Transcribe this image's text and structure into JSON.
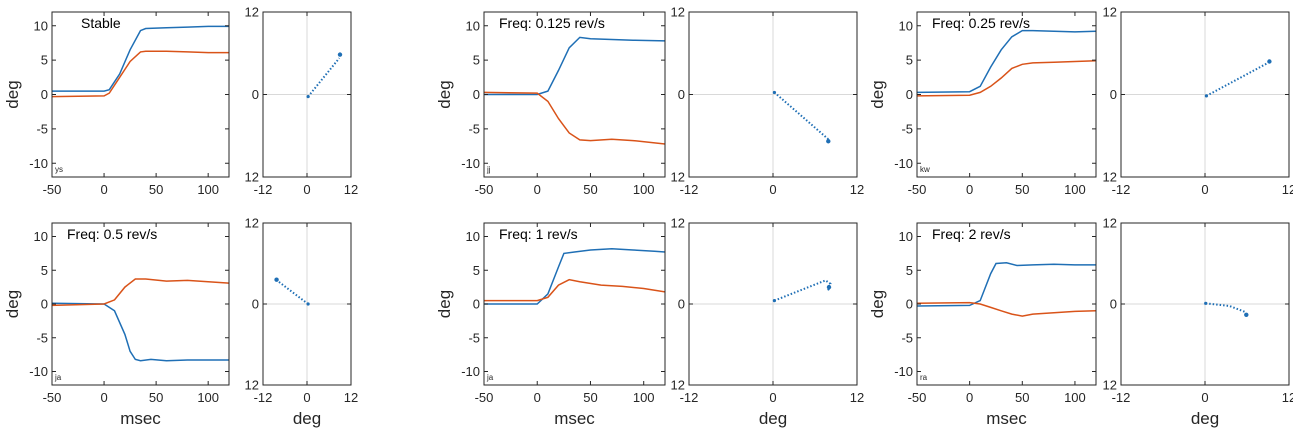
{
  "figure": {
    "colors": {
      "series_blue": "#1f6fb5",
      "series_orange": "#d95319",
      "axis": "#262626",
      "grid": "#d9d9d9"
    },
    "timeseries_xlabel": "msec",
    "timeseries_ylabel": "deg",
    "trajectory_xlabel": "deg"
  },
  "chart_data": [
    {
      "type": "line",
      "title": "Stable",
      "subject": "ys",
      "xlim": [
        -50,
        120
      ],
      "ylim": [
        -12,
        12
      ],
      "xticks": [
        -50,
        0,
        50,
        100
      ],
      "yticks": [
        -10,
        -5,
        0,
        5,
        10
      ],
      "xlabel": "",
      "ylabel": "deg",
      "series": [
        {
          "color": "#1f6fb5",
          "x": [
            -50,
            0,
            5,
            15,
            25,
            35,
            40,
            60,
            80,
            100,
            120
          ],
          "y": [
            0.5,
            0.5,
            0.7,
            3,
            6.5,
            9.3,
            9.6,
            9.7,
            9.8,
            9.9,
            9.9
          ]
        },
        {
          "color": "#d95319",
          "x": [
            -50,
            0,
            5,
            15,
            25,
            35,
            40,
            60,
            80,
            100,
            120
          ],
          "y": [
            -0.3,
            -0.2,
            0.2,
            2.5,
            4.8,
            6.2,
            6.3,
            6.3,
            6.2,
            6.1,
            6.1
          ]
        }
      ]
    },
    {
      "type": "scatter",
      "xlim": [
        -12,
        12
      ],
      "ylim": [
        -12,
        12
      ],
      "xticks": [
        -12,
        0,
        12
      ],
      "yticks": [
        -12,
        0,
        12
      ],
      "yticklabels": [
        "12",
        "0",
        "12"
      ],
      "xlabel": "",
      "grid": true,
      "path": [
        [
          0.3,
          -0.3
        ],
        [
          8.8,
          5.3
        ]
      ],
      "end": [
        9.0,
        5.8
      ]
    },
    {
      "type": "line",
      "title": "Freq: 0.125 rev/s",
      "subject": "jj",
      "xlim": [
        -50,
        120
      ],
      "ylim": [
        -12,
        12
      ],
      "xticks": [
        -50,
        0,
        50,
        100
      ],
      "yticks": [
        -10,
        -5,
        0,
        5,
        10
      ],
      "xlabel": "",
      "ylabel": "deg",
      "series": [
        {
          "color": "#1f6fb5",
          "x": [
            -50,
            0,
            10,
            20,
            30,
            40,
            50,
            70,
            90,
            120
          ],
          "y": [
            0,
            0,
            0.5,
            3.5,
            6.8,
            8.3,
            8.1,
            8.0,
            7.9,
            7.8
          ]
        },
        {
          "color": "#d95319",
          "x": [
            -50,
            0,
            10,
            20,
            30,
            40,
            50,
            70,
            90,
            120
          ],
          "y": [
            0.3,
            0.2,
            -1,
            -3.5,
            -5.6,
            -6.6,
            -6.7,
            -6.5,
            -6.7,
            -7.2
          ]
        }
      ]
    },
    {
      "type": "scatter",
      "xlim": [
        -12,
        12
      ],
      "ylim": [
        -12,
        12
      ],
      "xticks": [
        -12,
        0,
        12
      ],
      "yticks": [
        -12,
        0,
        12
      ],
      "yticklabels": [
        "12",
        "0",
        "12"
      ],
      "xlabel": "",
      "grid": true,
      "path": [
        [
          0.2,
          0.3
        ],
        [
          7.9,
          -6.5
        ]
      ],
      "end": [
        7.9,
        -6.8
      ]
    },
    {
      "type": "line",
      "title": "Freq: 0.25 rev/s",
      "subject": "kw",
      "xlim": [
        -50,
        120
      ],
      "ylim": [
        -12,
        12
      ],
      "xticks": [
        -50,
        0,
        50,
        100
      ],
      "yticks": [
        -10,
        -5,
        0,
        5,
        10
      ],
      "xlabel": "",
      "ylabel": "deg",
      "series": [
        {
          "color": "#1f6fb5",
          "x": [
            -50,
            0,
            10,
            20,
            30,
            40,
            50,
            60,
            80,
            100,
            120
          ],
          "y": [
            0.3,
            0.4,
            1.2,
            4,
            6.5,
            8.4,
            9.3,
            9.3,
            9.2,
            9.1,
            9.2
          ]
        },
        {
          "color": "#d95319",
          "x": [
            -50,
            0,
            10,
            20,
            30,
            40,
            50,
            60,
            80,
            100,
            120
          ],
          "y": [
            -0.2,
            -0.1,
            0.3,
            1.2,
            2.4,
            3.8,
            4.4,
            4.6,
            4.7,
            4.8,
            4.9
          ]
        }
      ]
    },
    {
      "type": "scatter",
      "xlim": [
        -12,
        12
      ],
      "ylim": [
        -12,
        12
      ],
      "xticks": [
        -12,
        0,
        12
      ],
      "yticks": [
        -12,
        0,
        12
      ],
      "yticklabels": [
        "12",
        "0",
        "12"
      ],
      "xlabel": "",
      "grid": true,
      "path": [
        [
          0.2,
          -0.2
        ],
        [
          9.0,
          4.6
        ]
      ],
      "end": [
        9.2,
        4.8
      ]
    },
    {
      "type": "line",
      "title": "Freq: 0.5 rev/s",
      "subject": "ja",
      "xlim": [
        -50,
        120
      ],
      "ylim": [
        -12,
        12
      ],
      "xticks": [
        -50,
        0,
        50,
        100
      ],
      "yticks": [
        -10,
        -5,
        0,
        5,
        10
      ],
      "xlabel": "msec",
      "ylabel": "deg",
      "series": [
        {
          "color": "#1f6fb5",
          "x": [
            -50,
            0,
            10,
            20,
            25,
            30,
            35,
            45,
            60,
            80,
            100,
            120
          ],
          "y": [
            0.1,
            0,
            -1,
            -4.5,
            -7,
            -8.2,
            -8.4,
            -8.2,
            -8.4,
            -8.3,
            -8.3,
            -8.3
          ]
        },
        {
          "color": "#d95319",
          "x": [
            -50,
            0,
            10,
            20,
            30,
            40,
            60,
            80,
            100,
            120
          ],
          "y": [
            -0.2,
            0,
            0.6,
            2.5,
            3.7,
            3.7,
            3.4,
            3.5,
            3.3,
            3.1
          ]
        }
      ]
    },
    {
      "type": "scatter",
      "xlim": [
        -12,
        12
      ],
      "ylim": [
        -12,
        12
      ],
      "xticks": [
        -12,
        0,
        12
      ],
      "yticks": [
        -12,
        0,
        12
      ],
      "yticklabels": [
        "12",
        "0",
        "12"
      ],
      "xlabel": "deg",
      "grid": true,
      "path": [
        [
          0.3,
          0
        ],
        [
          -8.2,
          3.5
        ]
      ],
      "end": [
        -8.3,
        3.6
      ]
    },
    {
      "type": "line",
      "title": "Freq: 1 rev/s",
      "subject": "ja",
      "xlim": [
        -50,
        120
      ],
      "ylim": [
        -12,
        12
      ],
      "xticks": [
        -50,
        0,
        50,
        100
      ],
      "yticks": [
        -10,
        -5,
        0,
        5,
        10
      ],
      "xlabel": "msec",
      "ylabel": "deg",
      "series": [
        {
          "color": "#1f6fb5",
          "x": [
            -50,
            0,
            10,
            20,
            25,
            35,
            50,
            70,
            90,
            110,
            120
          ],
          "y": [
            0,
            0,
            1.5,
            5.5,
            7.5,
            7.7,
            8.0,
            8.2,
            8.0,
            7.8,
            7.7
          ]
        },
        {
          "color": "#d95319",
          "x": [
            -50,
            0,
            10,
            20,
            30,
            40,
            60,
            80,
            100,
            120
          ],
          "y": [
            0.5,
            0.5,
            1.0,
            2.8,
            3.6,
            3.3,
            2.8,
            2.6,
            2.3,
            1.8
          ]
        }
      ]
    },
    {
      "type": "scatter",
      "xlim": [
        -12,
        12
      ],
      "ylim": [
        -12,
        12
      ],
      "xticks": [
        -12,
        0,
        12
      ],
      "yticks": [
        -12,
        0,
        12
      ],
      "yticklabels": [
        "12",
        "0",
        "12"
      ],
      "xlabel": "deg",
      "grid": true,
      "path": [
        [
          0.2,
          0.5
        ],
        [
          7.5,
          3.5
        ],
        [
          8.2,
          3.0
        ],
        [
          7.9,
          2.2
        ],
        [
          8.1,
          1.8
        ]
      ],
      "end": [
        8.0,
        2.5
      ]
    },
    {
      "type": "line",
      "title": "Freq: 2 rev/s",
      "subject": "ra",
      "xlim": [
        -50,
        120
      ],
      "ylim": [
        -12,
        12
      ],
      "xticks": [
        -50,
        0,
        50,
        100
      ],
      "yticks": [
        -10,
        -5,
        0,
        5,
        10
      ],
      "xlabel": "msec",
      "ylabel": "deg",
      "series": [
        {
          "color": "#1f6fb5",
          "x": [
            -50,
            0,
            10,
            20,
            25,
            35,
            45,
            60,
            80,
            100,
            120
          ],
          "y": [
            -0.3,
            -0.2,
            0.5,
            4.5,
            6.0,
            6.1,
            5.7,
            5.8,
            5.9,
            5.8,
            5.8
          ]
        },
        {
          "color": "#d95319",
          "x": [
            -50,
            0,
            10,
            20,
            30,
            40,
            50,
            60,
            80,
            100,
            120
          ],
          "y": [
            0.1,
            0.2,
            0,
            -0.5,
            -1,
            -1.5,
            -1.8,
            -1.5,
            -1.3,
            -1.1,
            -1.0
          ]
        }
      ]
    },
    {
      "type": "scatter",
      "xlim": [
        -12,
        12
      ],
      "ylim": [
        -12,
        12
      ],
      "xticks": [
        -12,
        0,
        12
      ],
      "yticks": [
        -12,
        0,
        12
      ],
      "yticklabels": [
        "12",
        "0",
        "12"
      ],
      "xlabel": "deg",
      "grid": true,
      "path": [
        [
          0.1,
          0.1
        ],
        [
          3.5,
          -0.3
        ],
        [
          5.8,
          -1.2
        ]
      ],
      "end": [
        5.9,
        -1.6
      ]
    }
  ]
}
